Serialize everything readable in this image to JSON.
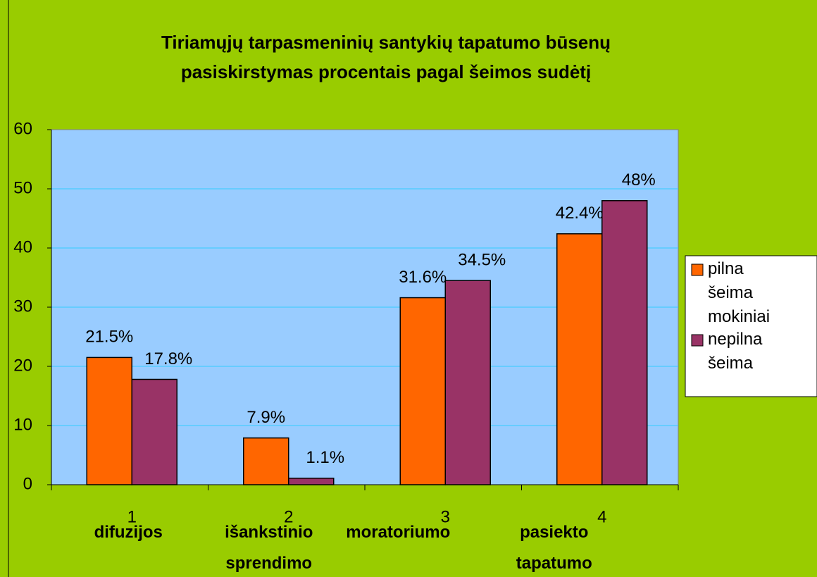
{
  "chart_data": {
    "type": "bar",
    "title": [
      "Tiriamųjų tarpasmeninių santykių tapatumo būsenų",
      "pasiskirstymas procentais pagal  šeimos sudėtį"
    ],
    "categories": [
      "1",
      "2",
      "3",
      "4"
    ],
    "category_names": [
      "difuzijos",
      "išankstinio sprendimo",
      "moratoriumo",
      "pasiekto tapatumo"
    ],
    "series": [
      {
        "name": "pilna šeima mokiniai",
        "color": "#ff6600",
        "values": [
          21.5,
          7.9,
          31.6,
          42.4
        ],
        "value_labels": [
          "21.5%",
          "7.9%",
          "31.6%",
          "42.4%"
        ]
      },
      {
        "name": "nepilna šeima",
        "color": "#993366",
        "values": [
          17.8,
          1.1,
          34.5,
          48
        ],
        "value_labels": [
          "17.8%",
          "1.1%",
          "34.5%",
          "48%"
        ]
      }
    ],
    "ylim": [
      0,
      60
    ],
    "yticks": [
      0,
      10,
      20,
      30,
      40,
      50,
      60
    ],
    "grid": true,
    "legend": "right"
  }
}
